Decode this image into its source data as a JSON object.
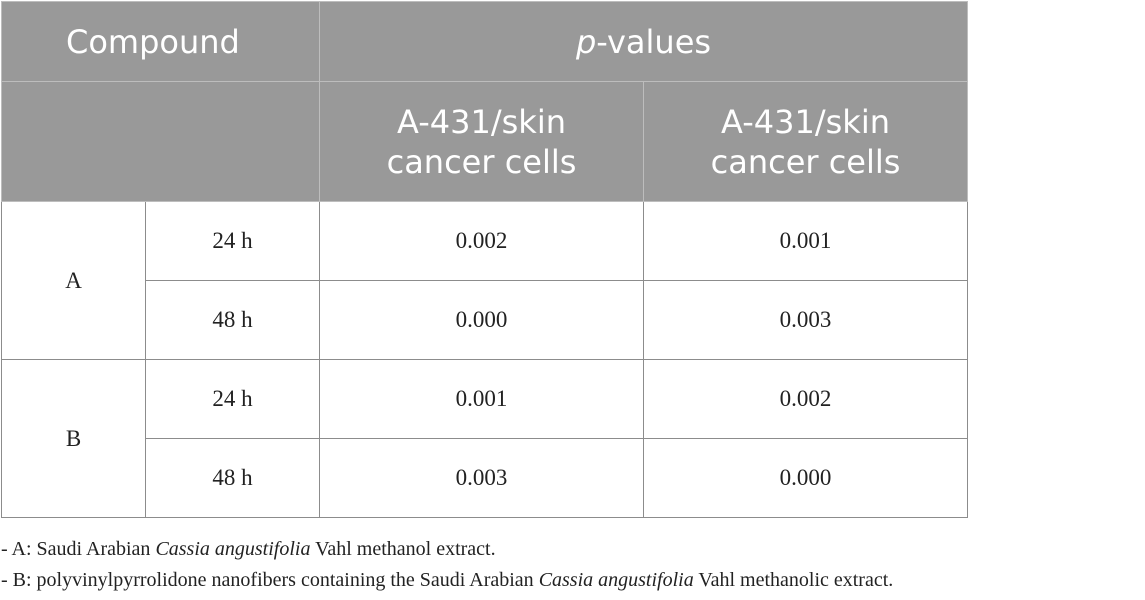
{
  "table": {
    "header": {
      "compound": "Compound",
      "pvalues_italic": "p",
      "pvalues_rest": "-values",
      "columns": [
        {
          "line1": "A-431/skin",
          "line2": "cancer cells"
        },
        {
          "line1": "A-431/skin",
          "line2": "cancer cells"
        }
      ]
    },
    "groups": [
      {
        "compound": "A",
        "rows": [
          {
            "time": "24 h",
            "values": [
              "0.002",
              "0.001"
            ]
          },
          {
            "time": "48 h",
            "values": [
              "0.000",
              "0.003"
            ]
          }
        ]
      },
      {
        "compound": "B",
        "rows": [
          {
            "time": "24 h",
            "values": [
              "0.001",
              "0.002"
            ]
          },
          {
            "time": "48 h",
            "values": [
              "0.003",
              "0.000"
            ]
          }
        ]
      }
    ]
  },
  "footnotes": [
    {
      "before": "- A: Saudi Arabian ",
      "italic": "Cassia angustifolia",
      "after": " Vahl methanol extract."
    },
    {
      "before": "- B: polyvinylpyrrolidone nanofibers containing the Saudi Arabian ",
      "italic": "Cassia angustifolia",
      "after": " Vahl methanolic extract."
    }
  ]
}
